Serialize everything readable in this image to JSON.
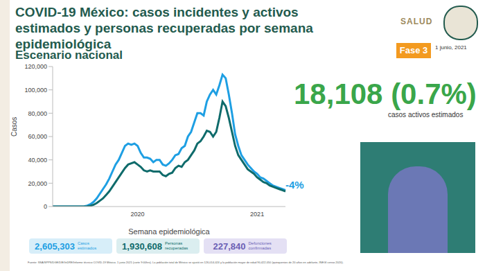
{
  "header": {
    "logo": "SALUD",
    "phase": "Fase 3",
    "date": "1 junio, 2021"
  },
  "chart_data": {
    "type": "line",
    "title": "COVID-19 México: casos incidentes y activos estimados y personas recuperadas por semana epidemiológica",
    "subtitle": "Escenario nacional",
    "x_label": "Semana epidemiológica",
    "y_label": "Casos",
    "annotations": [
      "-4%"
    ],
    "categories": [
      null,
      null,
      null,
      null,
      null,
      null,
      null,
      null,
      null,
      null,
      null,
      null,
      null,
      null,
      null,
      null,
      null,
      null,
      null,
      null,
      null,
      null,
      null,
      null,
      null,
      null,
      null,
      "2020",
      null,
      null,
      null,
      null,
      null,
      null,
      null,
      null,
      null,
      null,
      null,
      null,
      null,
      null,
      null,
      null,
      null,
      null,
      null,
      null,
      null,
      null,
      null,
      null,
      null,
      null,
      null,
      null,
      null,
      null,
      null,
      null,
      null,
      null,
      null,
      null,
      null,
      "2021",
      null,
      null,
      null,
      null,
      null,
      null,
      null,
      null,
      null
    ],
    "series": [
      {
        "color": "#1e9fe3",
        "values": [
          0,
          0,
          0,
          0,
          0,
          0,
          0,
          0,
          0,
          0,
          200,
          800,
          2000,
          4000,
          7000,
          11000,
          15000,
          19000,
          24000,
          30000,
          36000,
          40000,
          46000,
          52000,
          54000,
          53000,
          54000,
          52000,
          46000,
          42000,
          42000,
          41000,
          38000,
          40000,
          40000,
          36000,
          35000,
          37000,
          40000,
          44000,
          45000,
          50000,
          52000,
          60000,
          64000,
          72000,
          80000,
          80000,
          78000,
          90000,
          96000,
          100000,
          96000,
          104000,
          113000,
          110000,
          96000,
          80000,
          62000,
          52000,
          44000,
          40000,
          36000,
          33000,
          30000,
          28000,
          25000,
          24000,
          22000,
          20000,
          18000,
          17000,
          16000,
          15000,
          14000
        ]
      },
      {
        "color": "#0f6b6b",
        "values": [
          0,
          0,
          0,
          0,
          0,
          0,
          0,
          0,
          0,
          0,
          0,
          200,
          600,
          1500,
          3000,
          5000,
          7000,
          10000,
          13000,
          17000,
          21000,
          25000,
          29000,
          33000,
          36000,
          37000,
          38000,
          36000,
          34000,
          31000,
          30000,
          31000,
          30000,
          30000,
          30000,
          27000,
          26000,
          28000,
          29000,
          33000,
          35000,
          34000,
          38000,
          40000,
          44000,
          48000,
          54000,
          56000,
          60000,
          65000,
          64000,
          60000,
          64000,
          76000,
          90000,
          86000,
          76000,
          64000,
          52000,
          44000,
          40000,
          36000,
          32000,
          30000,
          28000,
          25000,
          23000,
          21000,
          20000,
          18000,
          17000,
          16000,
          15000,
          14000,
          13000
        ]
      }
    ],
    "ylim": [
      0,
      120000
    ],
    "yticks": [
      0,
      {
        "value": 20000,
        "label": "20,000"
      },
      {
        "value": 40000,
        "label": "40,000"
      },
      {
        "value": 60000,
        "label": "60,000"
      },
      {
        "value": 80000,
        "label": "80,000"
      },
      {
        "value": 100000,
        "label": "100,000"
      },
      {
        "value": 120000,
        "label": "120,000"
      }
    ],
    "grid": false
  },
  "highlight": {
    "value": "18,108 (0.7%)",
    "label": "casos activos estimados"
  },
  "summary": [
    {
      "value": "2,605,303",
      "label": "Casos estimados"
    },
    {
      "value": "1,930,608",
      "label": "Personas recuperadas"
    },
    {
      "value": "227,840",
      "label": "Defunciones confirmadas"
    }
  ],
  "footer": "Fuente: SSA/SPPS/DGE/DIE/InDRE/Informe técnico COVID-19 México. 1 junio 2021 (corte 9:00hrs). La población total de México se ajustó en 126,014,024 y la población mayor de edad 90,422,050 (quinquenios de 20 años en adelante, INEGI censo 2020)."
}
